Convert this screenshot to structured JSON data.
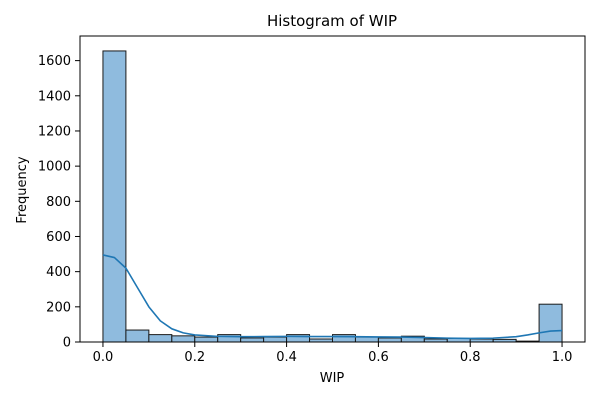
{
  "chart_data": {
    "type": "bar",
    "title": "Histogram of WIP",
    "xlabel": "WIP",
    "ylabel": "Frequency",
    "xlim": [
      -0.05,
      1.05
    ],
    "ylim": [
      0,
      1740
    ],
    "x_ticks": [
      0.0,
      0.2,
      0.4,
      0.6,
      0.8,
      1.0
    ],
    "x_tick_labels": [
      "0.0",
      "0.2",
      "0.4",
      "0.6",
      "0.8",
      "1.0"
    ],
    "y_ticks": [
      0,
      200,
      400,
      600,
      800,
      1000,
      1200,
      1400,
      1600
    ],
    "y_tick_labels": [
      "0",
      "200",
      "400",
      "600",
      "800",
      "1000",
      "1200",
      "1400",
      "1600"
    ],
    "bin_edges": [
      0.0,
      0.05,
      0.1,
      0.15,
      0.2,
      0.25,
      0.3,
      0.35,
      0.4,
      0.45,
      0.5,
      0.55,
      0.6,
      0.65,
      0.7,
      0.75,
      0.8,
      0.85,
      0.9,
      0.95,
      1.0
    ],
    "counts": [
      1655,
      68,
      42,
      35,
      28,
      42,
      23,
      28,
      42,
      17,
      42,
      28,
      23,
      33,
      17,
      20,
      17,
      15,
      5,
      215
    ],
    "kde": {
      "x": [
        0.0,
        0.025,
        0.05,
        0.075,
        0.1,
        0.125,
        0.15,
        0.175,
        0.2,
        0.25,
        0.3,
        0.35,
        0.4,
        0.45,
        0.5,
        0.55,
        0.6,
        0.65,
        0.7,
        0.75,
        0.8,
        0.85,
        0.9,
        0.925,
        0.95,
        0.975,
        1.0
      ],
      "y": [
        495,
        480,
        420,
        310,
        200,
        120,
        75,
        52,
        40,
        32,
        30,
        31,
        32,
        31,
        31,
        30,
        29,
        28,
        25,
        22,
        20,
        22,
        30,
        40,
        52,
        62,
        65
      ]
    },
    "colors": {
      "bar_fill": "#8fbbde",
      "bar_edge": "#1a1a1a",
      "kde_line": "#1f77b4"
    }
  }
}
